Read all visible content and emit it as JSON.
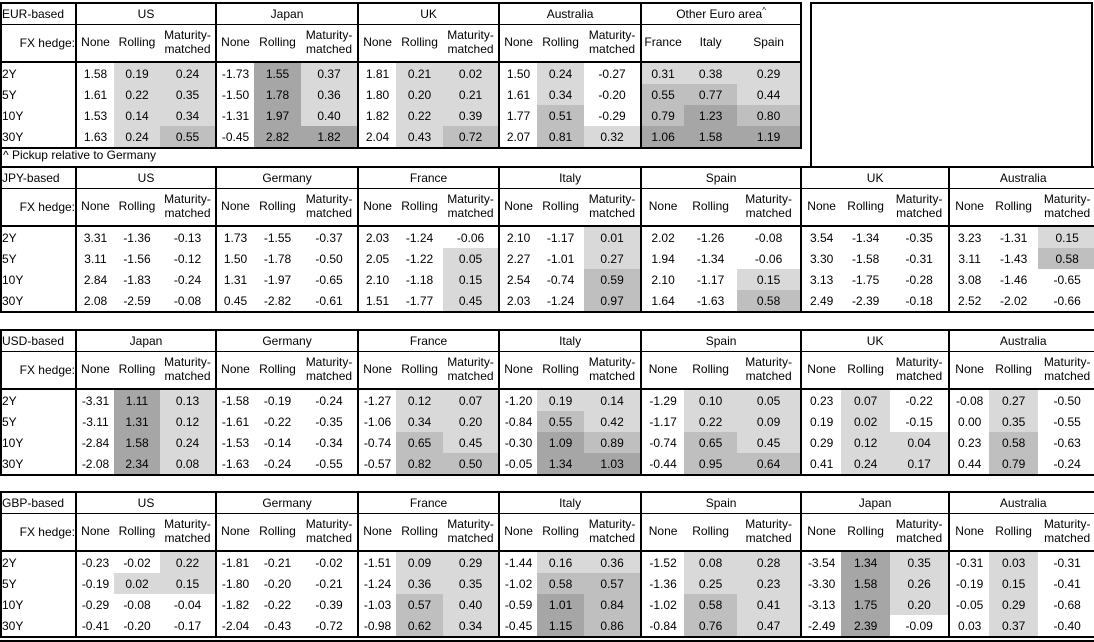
{
  "footnote": "^ Pickup relative to Germany",
  "fx_hedge_label": "FX hedge:",
  "row_labels": [
    "2Y",
    "5Y",
    "10Y",
    "30Y"
  ],
  "hedge_columns": [
    "None",
    "Rolling",
    "Maturity-matched"
  ],
  "shade_colors": {
    "light": "#d9d9d9",
    "medium": "#bfbfbf",
    "dark": "#a6a6a6"
  },
  "shade_rule": "hedged columns: value<0 white, 0-0.5 light, 0.5-1.0 medium, >=1.0 dark",
  "sections": [
    {
      "label": "EUR-based",
      "groups": [
        {
          "name": "US",
          "columns": [
            "None",
            "Rolling",
            "Maturity-matched"
          ],
          "shaded": [
            false,
            true,
            true
          ],
          "rows": [
            [
              "1.58",
              "0.19",
              "0.24"
            ],
            [
              "1.61",
              "0.22",
              "0.35"
            ],
            [
              "1.53",
              "0.14",
              "0.34"
            ],
            [
              "1.63",
              "0.24",
              "0.55"
            ]
          ]
        },
        {
          "name": "Japan",
          "columns": [
            "None",
            "Rolling",
            "Maturity-matched"
          ],
          "shaded": [
            false,
            true,
            true
          ],
          "rows": [
            [
              "-1.73",
              "1.55",
              "0.37"
            ],
            [
              "-1.50",
              "1.78",
              "0.36"
            ],
            [
              "-1.31",
              "1.97",
              "0.40"
            ],
            [
              "-0.45",
              "2.82",
              "1.82"
            ]
          ]
        },
        {
          "name": "UK",
          "columns": [
            "None",
            "Rolling",
            "Maturity-matched"
          ],
          "shaded": [
            false,
            true,
            true
          ],
          "rows": [
            [
              "1.81",
              "0.21",
              "0.02"
            ],
            [
              "1.80",
              "0.20",
              "0.21"
            ],
            [
              "1.82",
              "0.22",
              "0.39"
            ],
            [
              "2.04",
              "0.43",
              "0.72"
            ]
          ]
        },
        {
          "name": "Australia",
          "columns": [
            "None",
            "Rolling",
            "Maturity-matched"
          ],
          "shaded": [
            false,
            true,
            true
          ],
          "rows": [
            [
              "1.50",
              "0.24",
              "-0.27"
            ],
            [
              "1.61",
              "0.34",
              "-0.20"
            ],
            [
              "1.77",
              "0.51",
              "-0.29"
            ],
            [
              "2.07",
              "0.81",
              "0.32"
            ]
          ]
        },
        {
          "name": "Other Euro area",
          "mark": "^",
          "columns": [
            "France",
            "Italy",
            "Spain"
          ],
          "shaded": [
            true,
            true,
            true
          ],
          "rows": [
            [
              "0.31",
              "0.38",
              "0.29"
            ],
            [
              "0.55",
              "0.77",
              "0.44"
            ],
            [
              "0.79",
              "1.23",
              "0.80"
            ],
            [
              "1.06",
              "1.58",
              "1.19"
            ]
          ]
        }
      ]
    },
    {
      "label": "JPY-based",
      "groups": [
        {
          "name": "US",
          "columns": [
            "None",
            "Rolling",
            "Maturity-matched"
          ],
          "shaded": [
            false,
            true,
            true
          ],
          "rows": [
            [
              "3.31",
              "-1.36",
              "-0.13"
            ],
            [
              "3.11",
              "-1.56",
              "-0.12"
            ],
            [
              "2.84",
              "-1.83",
              "-0.24"
            ],
            [
              "2.08",
              "-2.59",
              "-0.08"
            ]
          ]
        },
        {
          "name": "Germany",
          "columns": [
            "None",
            "Rolling",
            "Maturity-matched"
          ],
          "shaded": [
            false,
            true,
            true
          ],
          "rows": [
            [
              "1.73",
              "-1.55",
              "-0.37"
            ],
            [
              "1.50",
              "-1.78",
              "-0.50"
            ],
            [
              "1.31",
              "-1.97",
              "-0.65"
            ],
            [
              "0.45",
              "-2.82",
              "-0.61"
            ]
          ]
        },
        {
          "name": "France",
          "columns": [
            "None",
            "Rolling",
            "Maturity-matched"
          ],
          "shaded": [
            false,
            true,
            true
          ],
          "rows": [
            [
              "2.03",
              "-1.24",
              "-0.06"
            ],
            [
              "2.05",
              "-1.22",
              "0.05"
            ],
            [
              "2.10",
              "-1.18",
              "0.15"
            ],
            [
              "1.51",
              "-1.77",
              "0.45"
            ]
          ]
        },
        {
          "name": "Italy",
          "columns": [
            "None",
            "Rolling",
            "Maturity-matched"
          ],
          "shaded": [
            false,
            true,
            true
          ],
          "rows": [
            [
              "2.10",
              "-1.17",
              "0.01"
            ],
            [
              "2.27",
              "-1.01",
              "0.27"
            ],
            [
              "2.54",
              "-0.74",
              "0.59"
            ],
            [
              "2.03",
              "-1.24",
              "0.97"
            ]
          ]
        },
        {
          "name": "Spain",
          "columns": [
            "None",
            "Rolling",
            "Maturity-matched"
          ],
          "shaded": [
            false,
            true,
            true
          ],
          "rows": [
            [
              "2.02",
              "-1.26",
              "-0.08"
            ],
            [
              "1.94",
              "-1.34",
              "-0.06"
            ],
            [
              "2.10",
              "-1.17",
              "0.15"
            ],
            [
              "1.64",
              "-1.63",
              "0.58"
            ]
          ]
        },
        {
          "name": "UK",
          "columns": [
            "None",
            "Rolling",
            "Maturity-matched"
          ],
          "shaded": [
            false,
            true,
            true
          ],
          "rows": [
            [
              "3.54",
              "-1.34",
              "-0.35"
            ],
            [
              "3.30",
              "-1.58",
              "-0.31"
            ],
            [
              "3.13",
              "-1.75",
              "-0.28"
            ],
            [
              "2.49",
              "-2.39",
              "-0.18"
            ]
          ]
        },
        {
          "name": "Australia",
          "columns": [
            "None",
            "Rolling",
            "Maturity-matched"
          ],
          "shaded": [
            false,
            true,
            true
          ],
          "rows": [
            [
              "3.23",
              "-1.31",
              "0.15"
            ],
            [
              "3.11",
              "-1.43",
              "0.58"
            ],
            [
              "3.08",
              "-1.46",
              "-0.65"
            ],
            [
              "2.52",
              "-2.02",
              "-0.66"
            ]
          ]
        }
      ]
    },
    {
      "label": "USD-based",
      "groups": [
        {
          "name": "Japan",
          "columns": [
            "None",
            "Rolling",
            "Maturity-matched"
          ],
          "shaded": [
            false,
            true,
            true
          ],
          "rows": [
            [
              "-3.31",
              "1.11",
              "0.13"
            ],
            [
              "-3.11",
              "1.31",
              "0.12"
            ],
            [
              "-2.84",
              "1.58",
              "0.24"
            ],
            [
              "-2.08",
              "2.34",
              "0.08"
            ]
          ]
        },
        {
          "name": "Germany",
          "columns": [
            "None",
            "Rolling",
            "Maturity-matched"
          ],
          "shaded": [
            false,
            true,
            true
          ],
          "rows": [
            [
              "-1.58",
              "-0.19",
              "-0.24"
            ],
            [
              "-1.61",
              "-0.22",
              "-0.35"
            ],
            [
              "-1.53",
              "-0.14",
              "-0.34"
            ],
            [
              "-1.63",
              "-0.24",
              "-0.55"
            ]
          ]
        },
        {
          "name": "France",
          "columns": [
            "None",
            "Rolling",
            "Maturity-matched"
          ],
          "shaded": [
            false,
            true,
            true
          ],
          "rows": [
            [
              "-1.27",
              "0.12",
              "0.07"
            ],
            [
              "-1.06",
              "0.34",
              "0.20"
            ],
            [
              "-0.74",
              "0.65",
              "0.45"
            ],
            [
              "-0.57",
              "0.82",
              "0.50"
            ]
          ]
        },
        {
          "name": "Italy",
          "columns": [
            "None",
            "Rolling",
            "Maturity-matched"
          ],
          "shaded": [
            false,
            true,
            true
          ],
          "rows": [
            [
              "-1.20",
              "0.19",
              "0.14"
            ],
            [
              "-0.84",
              "0.55",
              "0.42"
            ],
            [
              "-0.30",
              "1.09",
              "0.89"
            ],
            [
              "-0.05",
              "1.34",
              "1.03"
            ]
          ]
        },
        {
          "name": "Spain",
          "columns": [
            "None",
            "Rolling",
            "Maturity-matched"
          ],
          "shaded": [
            false,
            true,
            true
          ],
          "rows": [
            [
              "-1.29",
              "0.10",
              "0.05"
            ],
            [
              "-1.17",
              "0.22",
              "0.09"
            ],
            [
              "-0.74",
              "0.65",
              "0.45"
            ],
            [
              "-0.44",
              "0.95",
              "0.64"
            ]
          ]
        },
        {
          "name": "UK",
          "columns": [
            "None",
            "Rolling",
            "Maturity-matched"
          ],
          "shaded": [
            false,
            true,
            true
          ],
          "rows": [
            [
              "0.23",
              "0.07",
              "-0.22"
            ],
            [
              "0.19",
              "0.02",
              "-0.15"
            ],
            [
              "0.29",
              "0.12",
              "0.04"
            ],
            [
              "0.41",
              "0.24",
              "0.17"
            ]
          ]
        },
        {
          "name": "Australia",
          "columns": [
            "None",
            "Rolling",
            "Maturity-matched"
          ],
          "shaded": [
            false,
            true,
            true
          ],
          "rows": [
            [
              "-0.08",
              "0.27",
              "-0.50"
            ],
            [
              "0.00",
              "0.35",
              "-0.55"
            ],
            [
              "0.23",
              "0.58",
              "-0.63"
            ],
            [
              "0.44",
              "0.79",
              "-0.24"
            ]
          ]
        }
      ]
    },
    {
      "label": "GBP-based",
      "groups": [
        {
          "name": "US",
          "columns": [
            "None",
            "Rolling",
            "Maturity-matched"
          ],
          "shaded": [
            false,
            true,
            true
          ],
          "rows": [
            [
              "-0.23",
              "-0.02",
              "0.22"
            ],
            [
              "-0.19",
              "0.02",
              "0.15"
            ],
            [
              "-0.29",
              "-0.08",
              "-0.04"
            ],
            [
              "-0.41",
              "-0.20",
              "-0.17"
            ]
          ]
        },
        {
          "name": "Germany",
          "columns": [
            "None",
            "Rolling",
            "Maturity-matched"
          ],
          "shaded": [
            false,
            true,
            true
          ],
          "rows": [
            [
              "-1.81",
              "-0.21",
              "-0.02"
            ],
            [
              "-1.80",
              "-0.20",
              "-0.21"
            ],
            [
              "-1.82",
              "-0.22",
              "-0.39"
            ],
            [
              "-2.04",
              "-0.43",
              "-0.72"
            ]
          ]
        },
        {
          "name": "France",
          "columns": [
            "None",
            "Rolling",
            "Maturity-matched"
          ],
          "shaded": [
            false,
            true,
            true
          ],
          "rows": [
            [
              "-1.51",
              "0.09",
              "0.29"
            ],
            [
              "-1.24",
              "0.36",
              "0.35"
            ],
            [
              "-1.03",
              "0.57",
              "0.40"
            ],
            [
              "-0.98",
              "0.62",
              "0.34"
            ]
          ]
        },
        {
          "name": "Italy",
          "columns": [
            "None",
            "Rolling",
            "Maturity-matched"
          ],
          "shaded": [
            false,
            true,
            true
          ],
          "rows": [
            [
              "-1.44",
              "0.16",
              "0.36"
            ],
            [
              "-1.02",
              "0.58",
              "0.57"
            ],
            [
              "-0.59",
              "1.01",
              "0.84"
            ],
            [
              "-0.45",
              "1.15",
              "0.86"
            ]
          ]
        },
        {
          "name": "Spain",
          "columns": [
            "None",
            "Rolling",
            "Maturity-matched"
          ],
          "shaded": [
            false,
            true,
            true
          ],
          "rows": [
            [
              "-1.52",
              "0.08",
              "0.28"
            ],
            [
              "-1.36",
              "0.25",
              "0.23"
            ],
            [
              "-1.02",
              "0.58",
              "0.41"
            ],
            [
              "-0.84",
              "0.76",
              "0.47"
            ]
          ]
        },
        {
          "name": "Japan",
          "columns": [
            "None",
            "Rolling",
            "Maturity-matched"
          ],
          "shaded": [
            false,
            true,
            true
          ],
          "rows": [
            [
              "-3.54",
              "1.34",
              "0.35"
            ],
            [
              "-3.30",
              "1.58",
              "0.26"
            ],
            [
              "-3.13",
              "1.75",
              "0.20"
            ],
            [
              "-2.49",
              "2.39",
              "-0.09"
            ]
          ]
        },
        {
          "name": "Australia",
          "columns": [
            "None",
            "Rolling",
            "Maturity-matched"
          ],
          "shaded": [
            false,
            true,
            true
          ],
          "rows": [
            [
              "-0.31",
              "0.03",
              "-0.31"
            ],
            [
              "-0.19",
              "0.15",
              "-0.41"
            ],
            [
              "-0.05",
              "0.29",
              "-0.68"
            ],
            [
              "0.03",
              "0.37",
              "-0.40"
            ]
          ]
        }
      ]
    }
  ]
}
